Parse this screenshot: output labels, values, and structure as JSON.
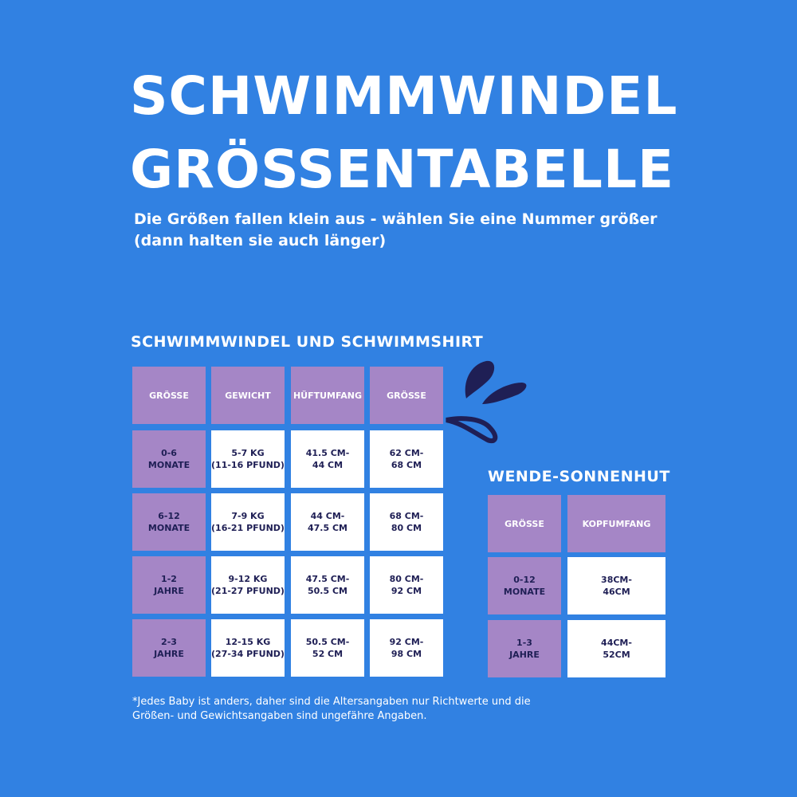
{
  "title_line1": "SCHWIMMWINDEL",
  "title_line2": "GRÖSSENTABELLE",
  "subtitle": "Die Größen fallen klein aus - wählen Sie eine Nummer größer (dann halten sie auch länger)",
  "table1": {
    "heading": "SCHWIMMWINDEL UND SCHWIMMSHIRT",
    "headers": [
      "GRÖSSE",
      "GEWICHT",
      "HÜFTUMFANG",
      "GRÖSSE"
    ],
    "rows": [
      [
        "0-6\nMONATE",
        "5-7 KG\n(11-16 PFUND)",
        "41.5 CM-\n44 CM",
        "62 CM-\n68 CM"
      ],
      [
        "6-12\nMONATE",
        "7-9 KG\n(16-21 PFUND)",
        "44 CM-\n47.5 CM",
        "68 CM-\n80 CM"
      ],
      [
        "1-2\nJAHRE",
        "9-12 KG\n(21-27 PFUND)",
        "47.5 CM-\n50.5 CM",
        "80 CM-\n92 CM"
      ],
      [
        "2-3\nJAHRE",
        "12-15 KG\n(27-34 PFUND)",
        "50.5 CM-\n52 CM",
        "92 CM-\n98 CM"
      ]
    ]
  },
  "table2": {
    "heading": "WENDE-SONNENHUT",
    "headers": [
      "GRÖSSE",
      "KOPFUMFANG"
    ],
    "rows": [
      [
        "0-12\nMONATE",
        "38CM-\n46CM"
      ],
      [
        "1-3\nJAHRE",
        "44CM-\n52CM"
      ]
    ]
  },
  "footnote": "*Jedes Baby ist anders, daher sind die Altersangaben nur Richtwerte und die Größen- und Gewichtsangaben sind ungefähre Angaben.",
  "colors": {
    "background": "#3181e2",
    "header_cell": "#a586c6",
    "text_dark": "#1f1f55"
  },
  "icons": [
    "splash-icon"
  ]
}
